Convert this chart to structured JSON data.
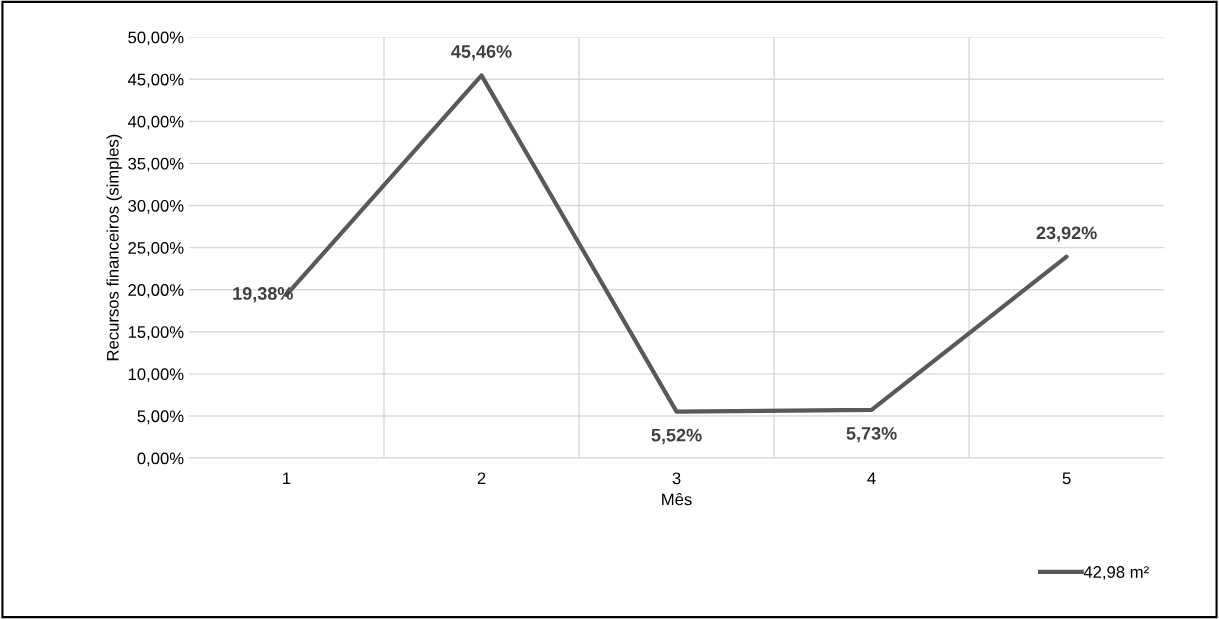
{
  "chart_data": {
    "type": "line",
    "xlabel": "Mês",
    "ylabel": "Recursos financeiros (simples)",
    "categories": [
      "1",
      "2",
      "3",
      "4",
      "5"
    ],
    "series": [
      {
        "name": "42,98 m²",
        "color": "#595959",
        "values": [
          19.38,
          45.46,
          5.52,
          5.73,
          23.92
        ],
        "value_labels": [
          "19,38%",
          "45,46%",
          "5,52%",
          "5,73%",
          "23,92%"
        ]
      }
    ],
    "ylim": [
      0,
      50
    ],
    "yticks": [
      {
        "value": 0,
        "label": "0,00%"
      },
      {
        "value": 5,
        "label": "5,00%"
      },
      {
        "value": 10,
        "label": "10,00%"
      },
      {
        "value": 15,
        "label": "15,00%"
      },
      {
        "value": 20,
        "label": "20,00%"
      },
      {
        "value": 25,
        "label": "25,00%"
      },
      {
        "value": 30,
        "label": "30,00%"
      },
      {
        "value": 35,
        "label": "35,00%"
      },
      {
        "value": 40,
        "label": "40,00%"
      },
      {
        "value": 45,
        "label": "45,00%"
      },
      {
        "value": 50,
        "label": "50,00%"
      }
    ],
    "grid": true,
    "legend": "bottom right",
    "marker": "none",
    "line_style": "solid"
  }
}
